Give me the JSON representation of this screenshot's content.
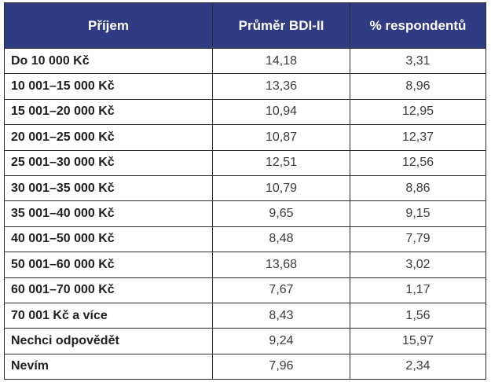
{
  "table": {
    "headers": [
      "Příjem",
      "Průměr BDI-II",
      "% respondentů"
    ],
    "rows": [
      {
        "label": "Do 10 000 Kč",
        "bdi": "14,18",
        "pct": "3,31"
      },
      {
        "label": "10 001–15 000 Kč",
        "bdi": "13,36",
        "pct": "8,96"
      },
      {
        "label": "15 001–20 000 Kč",
        "bdi": "10,94",
        "pct": "12,95"
      },
      {
        "label": "20 001–25 000 Kč",
        "bdi": "10,87",
        "pct": "12,37"
      },
      {
        "label": "25 001–30 000 Kč",
        "bdi": "12,51",
        "pct": "12,56"
      },
      {
        "label": "30 001–35 000 Kč",
        "bdi": "10,79",
        "pct": "8,86"
      },
      {
        "label": "35 001–40 000 Kč",
        "bdi": "9,65",
        "pct": "9,15"
      },
      {
        "label": "40 001–50 000 Kč",
        "bdi": "8,48",
        "pct": "7,79"
      },
      {
        "label": "50 001–60 000 Kč",
        "bdi": "13,68",
        "pct": "3,02"
      },
      {
        "label": "60 001–70 000 Kč",
        "bdi": "7,67",
        "pct": "1,17"
      },
      {
        "label": "70 001 Kč a více",
        "bdi": "8,43",
        "pct": "1,56"
      },
      {
        "label": "Nechci odpovědět",
        "bdi": "9,24",
        "pct": "15,97"
      },
      {
        "label": "Nevím",
        "bdi": "7,96",
        "pct": "2,34"
      }
    ]
  },
  "colors": {
    "header_bg": "#2f3c84",
    "header_text": "#ffffff",
    "border": "#2b2b2b"
  }
}
